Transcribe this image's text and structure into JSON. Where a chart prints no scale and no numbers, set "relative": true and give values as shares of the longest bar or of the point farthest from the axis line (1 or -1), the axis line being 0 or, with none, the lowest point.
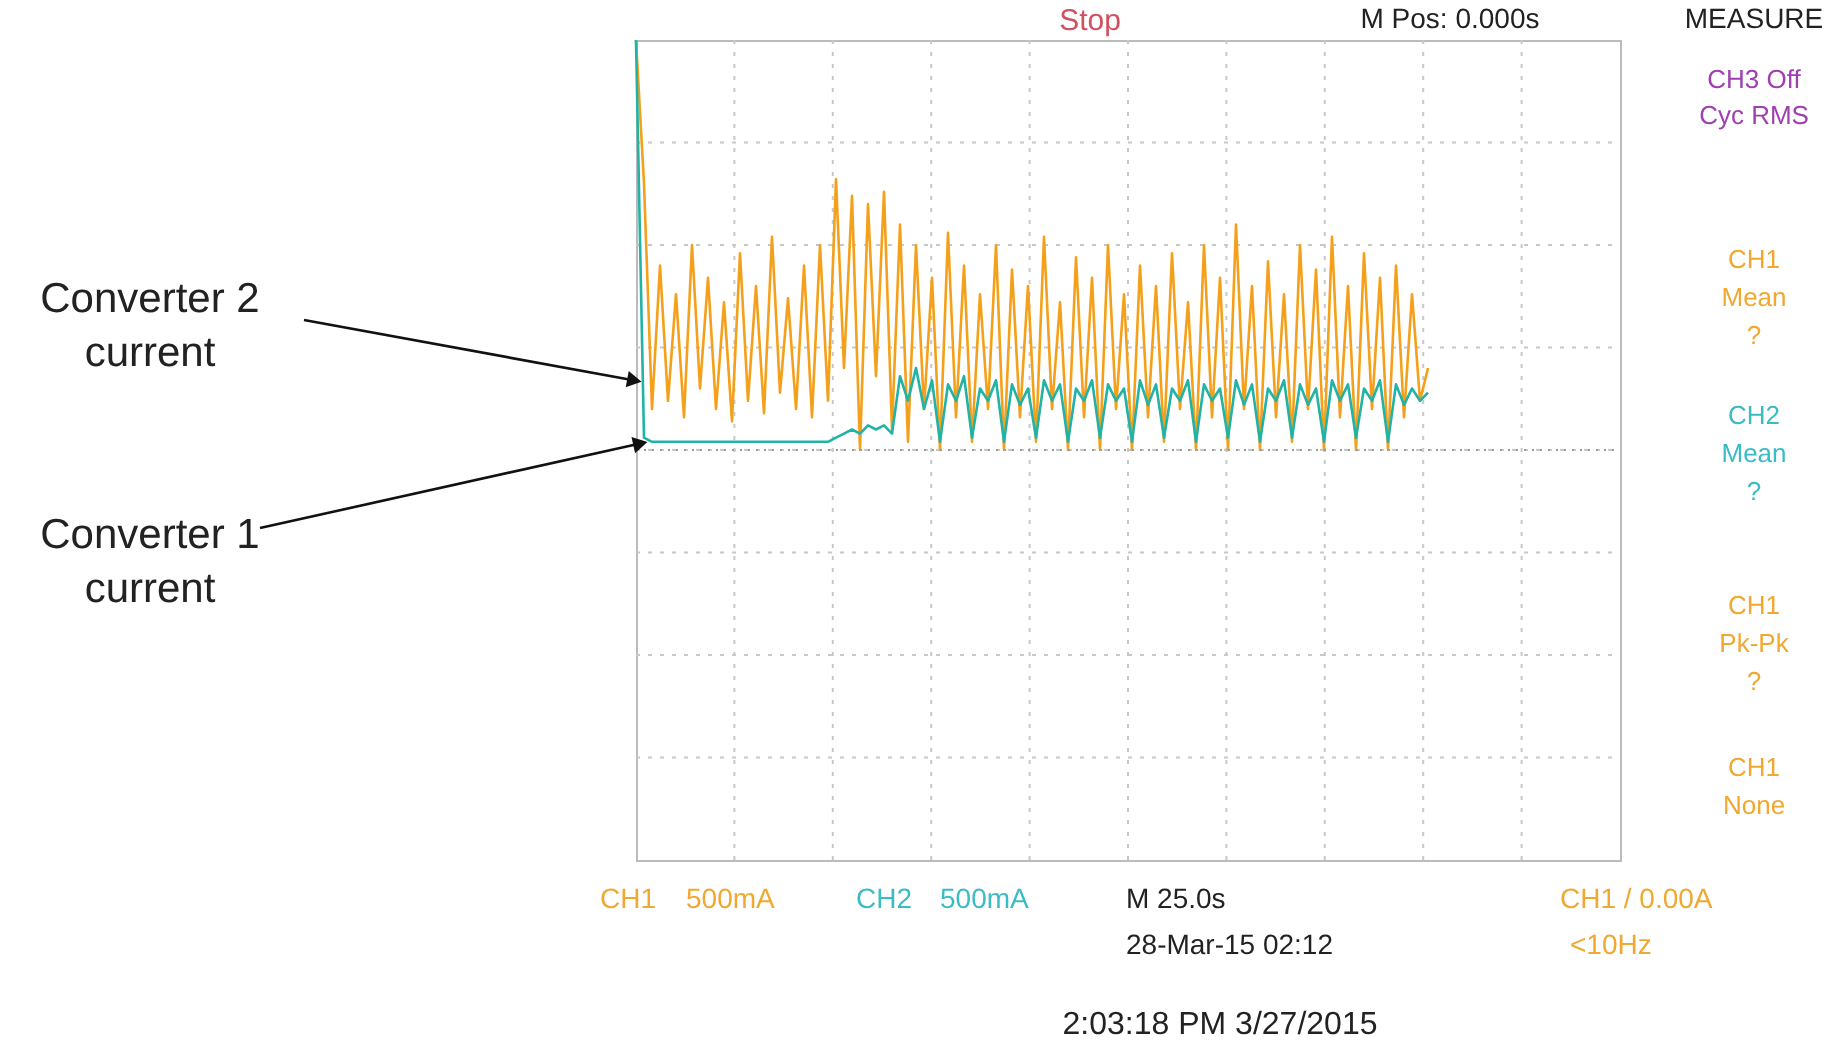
{
  "chart_data": {
    "type": "line",
    "relative": true,
    "grid": true,
    "tick_labels": false,
    "line_style": "solid",
    "categories": [
      null,
      null,
      null,
      null,
      null,
      null,
      null,
      null,
      null,
      null,
      null,
      null,
      null,
      null,
      null,
      null,
      null,
      null,
      null,
      null,
      null,
      null,
      null,
      null,
      null,
      null,
      null,
      null,
      null,
      null,
      null,
      null,
      null,
      null,
      null,
      null,
      null,
      null,
      null,
      null,
      null,
      null,
      null,
      null,
      null,
      null,
      null,
      null,
      null,
      null,
      null,
      null,
      null,
      null,
      null,
      null,
      null,
      null,
      null,
      null,
      null,
      null,
      null,
      null,
      null,
      null,
      null,
      null,
      null,
      null,
      null,
      null,
      null,
      null,
      null,
      null,
      null,
      null,
      null,
      null,
      null,
      null,
      null,
      null,
      null,
      null,
      null,
      null,
      null,
      null,
      null,
      null,
      null,
      null,
      null,
      null,
      null,
      null,
      null,
      null,
      null,
      null,
      null,
      null,
      null,
      null,
      null,
      null,
      null,
      null,
      null,
      null,
      null,
      null,
      null,
      null,
      null,
      null,
      null,
      null,
      null,
      null,
      null,
      null
    ],
    "series": [
      {
        "name": "Converter 2 current",
        "color": "#f5a01a",
        "values": [
          1.0,
          0.65,
          0.1,
          0.45,
          0.12,
          0.38,
          0.08,
          0.5,
          0.15,
          0.42,
          0.1,
          0.36,
          0.07,
          0.48,
          0.12,
          0.4,
          0.09,
          0.52,
          0.14,
          0.37,
          0.1,
          0.45,
          0.08,
          0.5,
          0.12,
          0.66,
          0.2,
          0.62,
          0.0,
          0.6,
          0.18,
          0.63,
          0.05,
          0.55,
          0.02,
          0.5,
          0.1,
          0.42,
          0.0,
          0.53,
          0.08,
          0.45,
          0.02,
          0.38,
          0.1,
          0.5,
          0.0,
          0.44,
          0.08,
          0.4,
          0.02,
          0.52,
          0.1,
          0.36,
          0.0,
          0.47,
          0.08,
          0.42,
          0.0,
          0.5,
          0.1,
          0.38,
          0.0,
          0.45,
          0.08,
          0.4,
          0.02,
          0.48,
          0.1,
          0.36,
          0.0,
          0.5,
          0.08,
          0.42,
          0.0,
          0.55,
          0.1,
          0.4,
          0.0,
          0.46,
          0.08,
          0.38,
          0.02,
          0.5,
          0.1,
          0.44,
          0.0,
          0.52,
          0.08,
          0.4,
          0.0,
          0.48,
          0.1,
          0.42,
          0.0,
          0.45,
          0.08,
          0.38,
          0.12,
          0.2,
          null,
          null,
          null,
          null,
          null,
          null,
          null,
          null,
          null,
          null,
          null,
          null,
          null,
          null,
          null,
          null,
          null,
          null,
          null,
          null,
          null,
          null,
          null,
          null
        ]
      },
      {
        "name": "Converter 1 current",
        "color": "#22b3a6",
        "values": [
          1.0,
          0.03,
          0.02,
          0.02,
          0.02,
          0.02,
          0.02,
          0.02,
          0.02,
          0.02,
          0.02,
          0.02,
          0.02,
          0.02,
          0.02,
          0.02,
          0.02,
          0.02,
          0.02,
          0.02,
          0.02,
          0.02,
          0.02,
          0.02,
          0.02,
          0.03,
          0.04,
          0.05,
          0.04,
          0.06,
          0.05,
          0.06,
          0.04,
          0.18,
          0.12,
          0.2,
          0.1,
          0.17,
          0.02,
          0.16,
          0.12,
          0.18,
          0.03,
          0.15,
          0.12,
          0.17,
          0.02,
          0.16,
          0.11,
          0.15,
          0.03,
          0.17,
          0.12,
          0.16,
          0.02,
          0.15,
          0.12,
          0.17,
          0.03,
          0.16,
          0.12,
          0.15,
          0.02,
          0.17,
          0.11,
          0.16,
          0.03,
          0.15,
          0.12,
          0.17,
          0.02,
          0.16,
          0.12,
          0.15,
          0.03,
          0.17,
          0.11,
          0.16,
          0.02,
          0.15,
          0.12,
          0.17,
          0.03,
          0.16,
          0.11,
          0.15,
          0.02,
          0.17,
          0.12,
          0.16,
          0.03,
          0.15,
          0.12,
          0.17,
          0.02,
          0.16,
          0.11,
          0.15,
          0.12,
          0.14,
          null,
          null,
          null,
          null,
          null,
          null,
          null,
          null,
          null,
          null,
          null,
          null,
          null,
          null,
          null,
          null,
          null,
          null,
          null,
          null,
          null,
          null,
          null,
          null
        ]
      }
    ],
    "annotations": [
      "Stop",
      "M Pos: 0.000s",
      "MEASURE",
      "CH3 Off",
      "Cyc RMS",
      "CH1",
      "Mean",
      "?",
      "CH2",
      "Mean",
      "?",
      "CH1",
      "Pk-Pk",
      "?",
      "CH1",
      "None",
      "CH1",
      "500mA",
      "CH2",
      "500mA",
      "M 25.0s",
      "28-Mar-15 02:12",
      "CH1 / 0.00A",
      "<10Hz",
      "2:03:18 PM   3/27/2015"
    ]
  }
}
